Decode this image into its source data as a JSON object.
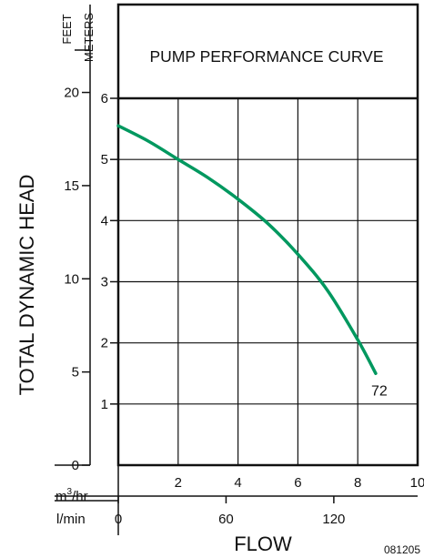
{
  "chart_data": {
    "type": "line",
    "title": "PUMP PERFORMANCE CURVE",
    "ylabel": "TOTAL  DYNAMIC  HEAD",
    "xlabel": "FLOW",
    "ylim_meters": [
      0,
      6
    ],
    "xlim_m3hr": [
      0,
      10
    ],
    "grid": true,
    "y_axis_feet": {
      "unit_label": "FEET",
      "ticks": [
        "0",
        "5",
        "10",
        "15",
        "20"
      ],
      "values": [
        0,
        5,
        10,
        15,
        20
      ]
    },
    "y_axis_meters": {
      "unit_label": "METERS",
      "ticks": [
        "1",
        "2",
        "3",
        "4",
        "5",
        "6"
      ],
      "values": [
        1,
        2,
        3,
        4,
        5,
        6
      ]
    },
    "x_axis_m3hr": {
      "unit_label_base": "m",
      "unit_label_sup": "3",
      "unit_label_rest": "/hr",
      "ticks": [
        "2",
        "4",
        "6",
        "8",
        "10"
      ],
      "values": [
        2,
        4,
        6,
        8,
        10
      ]
    },
    "x_axis_lmin": {
      "unit_label": "l/min",
      "ticks": [
        "0",
        "60",
        "120"
      ],
      "values": [
        0,
        60,
        120
      ]
    },
    "series": [
      {
        "name": "72",
        "color": "#00985f",
        "x": [
          0,
          1,
          2,
          3,
          4,
          5,
          6,
          7,
          8,
          8.6
        ],
        "y": [
          5.55,
          5.3,
          5.0,
          4.7,
          4.35,
          3.95,
          3.45,
          2.85,
          2.05,
          1.5
        ]
      }
    ],
    "code": "081205"
  }
}
